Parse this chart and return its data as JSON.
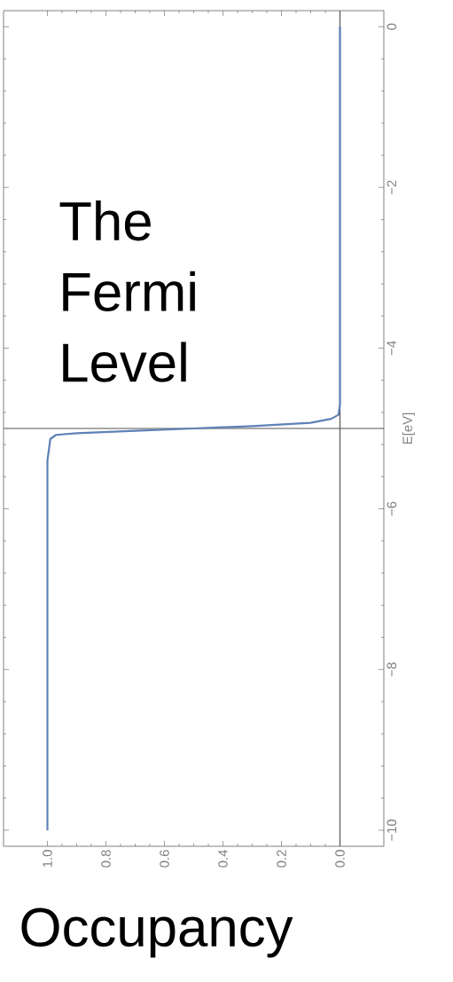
{
  "chart_data": {
    "type": "line",
    "xlabel": "Occupancy",
    "ylabel": "E[eV]",
    "x": [
      1.0,
      1.0,
      0.99,
      0.97,
      0.9,
      0.7,
      0.5,
      0.3,
      0.1,
      0.03,
      0.005,
      0.0,
      0.0
    ],
    "series": [
      {
        "color": "#5e81b5",
        "values": [
          -10,
          -5.4,
          -5.13,
          -5.08,
          -5.06,
          -5.03,
          -5.0,
          -4.97,
          -4.93,
          -4.88,
          -4.83,
          -4.7,
          0
        ]
      }
    ],
    "xlim": [
      1.15,
      -0.15
    ],
    "ylim": [
      -10.2,
      0.2
    ],
    "xticks": [
      {
        "value": 1,
        "label": "1.0"
      },
      {
        "value": 0.8,
        "label": "0.8"
      },
      {
        "value": 0.6,
        "label": "0.6"
      },
      {
        "value": 0.4,
        "label": "0.4"
      },
      {
        "value": 0.2,
        "label": "0.2"
      },
      {
        "value": 0,
        "label": "0.0"
      }
    ],
    "yticks": [
      {
        "value": -10,
        "label": "−10"
      },
      {
        "value": -8,
        "label": "−8"
      },
      {
        "value": -6,
        "label": "−6"
      },
      {
        "value": -4,
        "label": "−4"
      },
      {
        "value": -2,
        "label": "−2"
      },
      0
    ],
    "ref_lines": [
      {
        "axis": "y",
        "value": -5,
        "label": "The Fermi Level",
        "color": "#555555"
      },
      {
        "axis": "x",
        "value": 0,
        "color": "#555555"
      }
    ],
    "marker": "none",
    "line_style": "solid"
  }
}
